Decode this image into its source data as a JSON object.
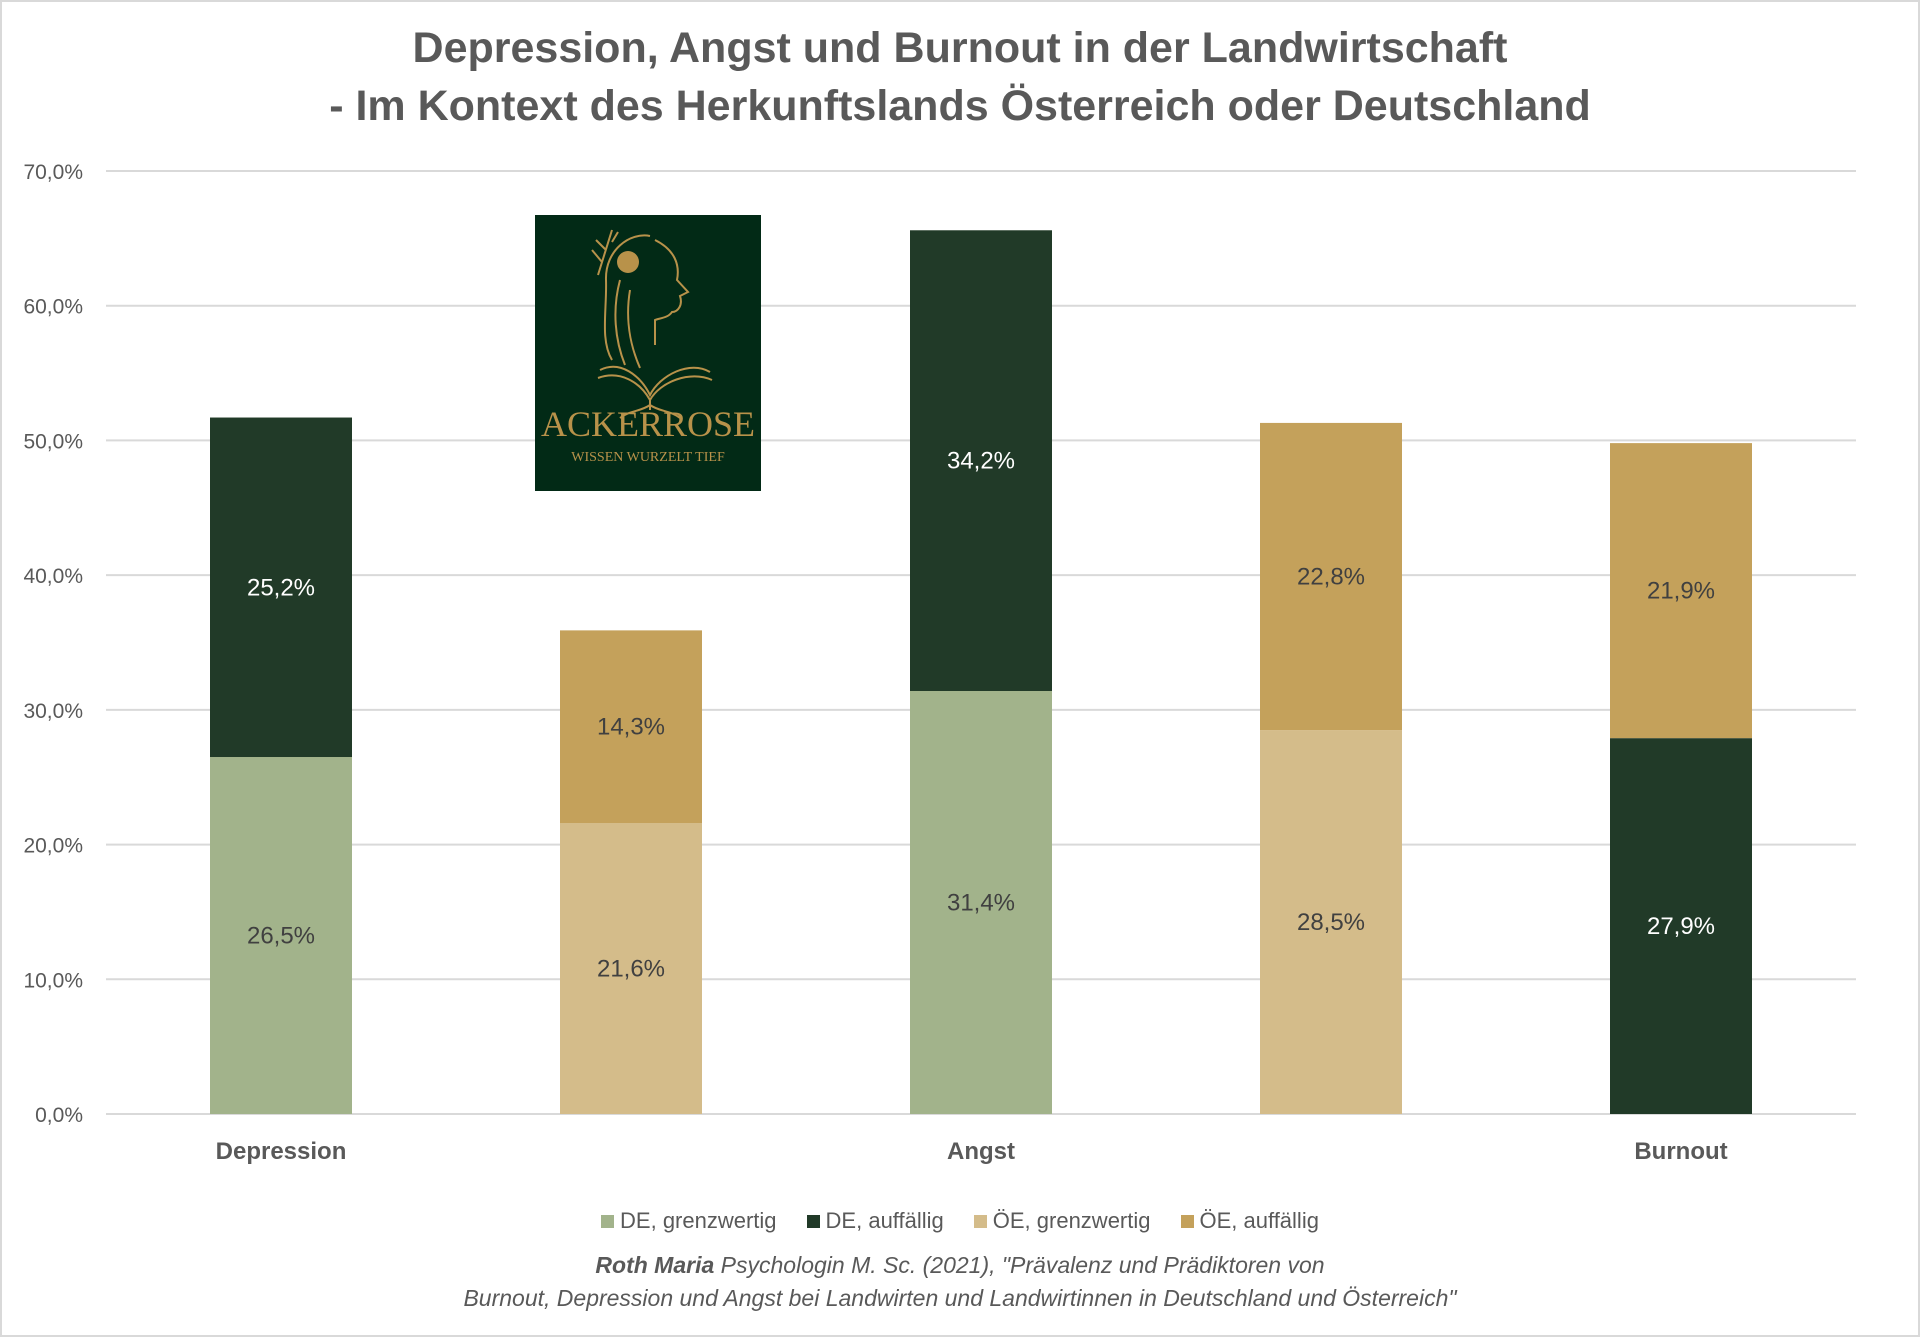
{
  "chart_data": {
    "type": "bar",
    "stacked": true,
    "title": [
      "Depression, Angst und Burnout in der Landwirtschaft",
      "- Im Kontext des Herkunftslands Österreich oder Deutschland"
    ],
    "categories": [
      "Depression",
      "",
      "Angst",
      "",
      "Burnout"
    ],
    "ylim": [
      0,
      70
    ],
    "yticks": [
      "0,0%",
      "10,0%",
      "20,0%",
      "30,0%",
      "40,0%",
      "50,0%",
      "60,0%",
      "70,0%"
    ],
    "grid": true,
    "legend_position": "bottom",
    "series": [
      {
        "name": "DE, grenzwertig",
        "color": "#a2b38b",
        "label_color": "#404040"
      },
      {
        "name": "DE, auffällig",
        "color": "#213a28",
        "label_color": "#ffffff"
      },
      {
        "name": "ÖE, grenzwertig",
        "color": "#d4bc8a",
        "label_color": "#404040"
      },
      {
        "name": "ÖE, auffällig",
        "color": "#c4a15b",
        "label_color": "#404040"
      }
    ],
    "stacks": [
      [
        {
          "series": 0,
          "value": 26.5,
          "label": "26,5%"
        },
        {
          "series": 1,
          "value": 25.2,
          "label": "25,2%"
        }
      ],
      [
        {
          "series": 2,
          "value": 21.6,
          "label": "21,6%"
        },
        {
          "series": 3,
          "value": 14.3,
          "label": "14,3%"
        }
      ],
      [
        {
          "series": 0,
          "value": 31.4,
          "label": "31,4%"
        },
        {
          "series": 1,
          "value": 34.2,
          "label": "34,2%"
        }
      ],
      [
        {
          "series": 2,
          "value": 28.5,
          "label": "28,5%"
        },
        {
          "series": 3,
          "value": 22.8,
          "label": "22,8%"
        }
      ],
      [
        {
          "series": 1,
          "value": 27.9,
          "label": "27,9%"
        },
        {
          "series": 3,
          "value": 21.9,
          "label": "21,9%"
        }
      ]
    ]
  },
  "logo": {
    "name": "ACKERROSE",
    "tagline": "WISSEN WURZELT TIEF"
  },
  "citation": {
    "author": "Roth Maria",
    "line1_rest": " Psychologin M. Sc. (2021), \"Prävalenz und Prädiktoren von",
    "line2": "Burnout, Depression und Angst bei Landwirten und Landwirtinnen in Deutschland und Österreich\""
  }
}
